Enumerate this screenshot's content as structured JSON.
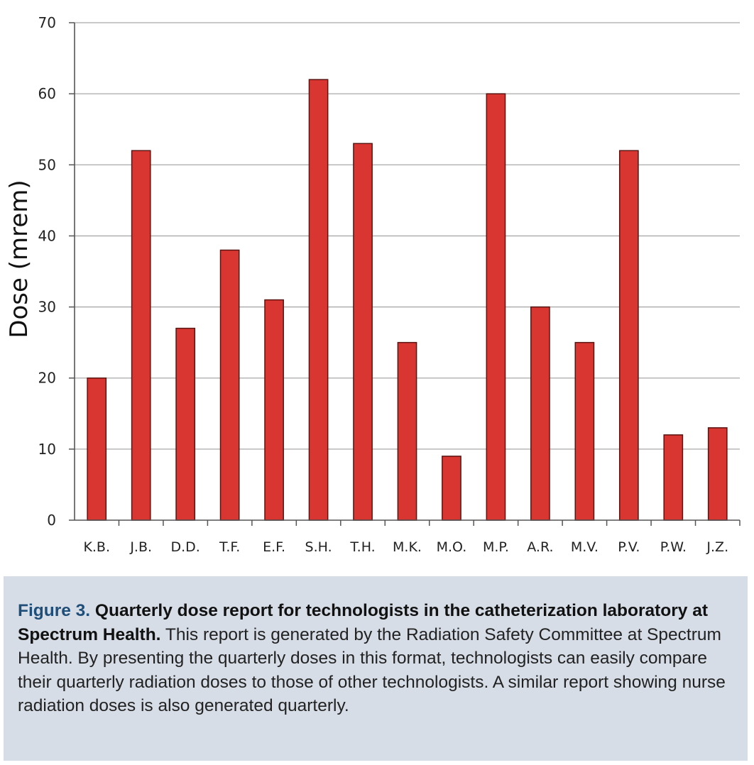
{
  "chart_data": {
    "type": "bar",
    "title": "",
    "xlabel": "",
    "ylabel": "Dose (mrem)",
    "ylim": [
      0,
      70
    ],
    "yticks": [
      0,
      10,
      20,
      30,
      40,
      50,
      60,
      70
    ],
    "grid": true,
    "categories": [
      "K.B.",
      "J.B.",
      "D.D.",
      "T.F.",
      "E.F.",
      "S.H.",
      "T.H.",
      "M.K.",
      "M.O.",
      "M.P.",
      "A.R.",
      "M.V.",
      "P.V.",
      "P.W.",
      "J.Z."
    ],
    "values": [
      20,
      52,
      27,
      38,
      31,
      62,
      53,
      25,
      9,
      60,
      30,
      25,
      52,
      12,
      13
    ],
    "bar_color": "#d93631",
    "bar_stroke": "#5a1512"
  },
  "caption": {
    "figure_number": "Figure 3.",
    "title": "Quarterly dose report for technologists in the catheterization laboratory at Spectrum Health.",
    "body": "This report is generated by the Radiation Safety Committee at Spectrum Health. By presenting the quarterly doses in this format, technologists can easily compare their quarterly radiation doses to those of other technologists. A similar report showing nurse radiation doses is also generated quarterly."
  }
}
